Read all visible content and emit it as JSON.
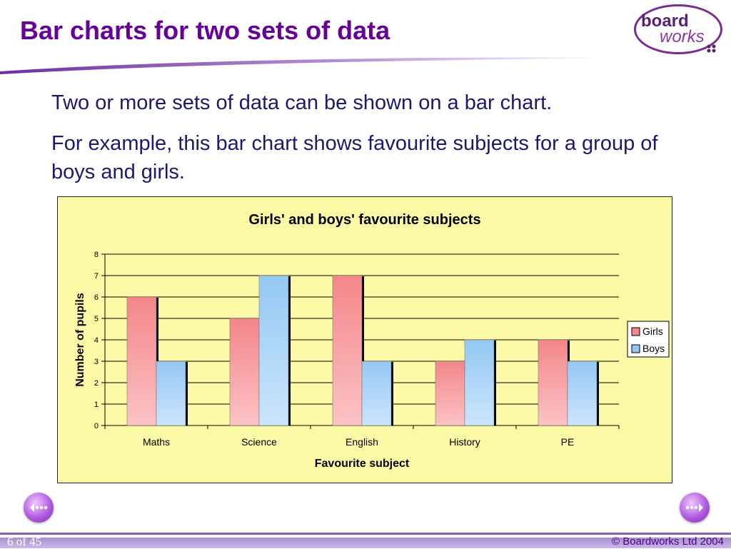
{
  "slide": {
    "title": "Bar charts for two sets of data",
    "paragraph1": "Two or more sets of data can be shown on a bar chart.",
    "paragraph2": "For example, this bar chart shows favourite subjects for a group of boys and girls."
  },
  "logo": {
    "word1": "board",
    "word2": "works"
  },
  "footer": {
    "page": "6 of 45",
    "copyright": "© Boardworks Ltd 2004"
  },
  "nav": {
    "prev_icon": "ellipsis-left-arrow-icon",
    "next_icon": "ellipsis-right-arrow-icon"
  },
  "colors": {
    "title": "#660099",
    "body_text": "#1a1a6e",
    "chart_background": "#fbf8a6",
    "girls": "#f4868a",
    "boys": "#94c8f4"
  },
  "chart_data": {
    "type": "bar",
    "title": "Girls' and boys' favourite subjects",
    "xlabel": "Favourite subject",
    "ylabel": "Number of pupils",
    "categories": [
      "Maths",
      "Science",
      "English",
      "History",
      "PE"
    ],
    "series": [
      {
        "name": "Girls",
        "values": [
          6,
          5,
          7,
          3,
          4
        ]
      },
      {
        "name": "Boys",
        "values": [
          3,
          7,
          3,
          4,
          3
        ]
      }
    ],
    "ylim": [
      0,
      8
    ],
    "yticks": [
      0,
      1,
      2,
      3,
      4,
      5,
      6,
      7,
      8
    ],
    "grid": true,
    "legend": "right"
  }
}
